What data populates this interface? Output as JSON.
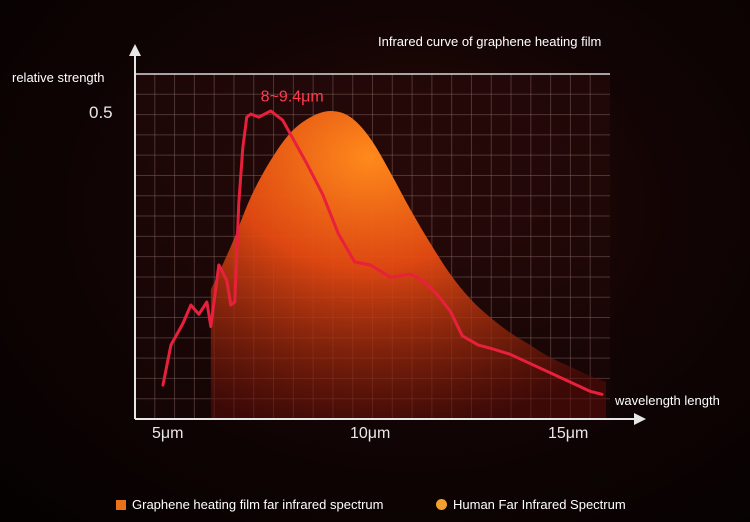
{
  "chart_data": {
    "type": "area",
    "title": "Infrared curve of graphene heating film",
    "ylabel": "relative strength",
    "xlabel": "wavelength length",
    "y_ticks": [
      "0.5"
    ],
    "x_ticks": [
      {
        "value": 5,
        "label": "5μm"
      },
      {
        "value": 10,
        "label": "10μm"
      },
      {
        "value": 15,
        "label": "15μm"
      }
    ],
    "xlim": [
      4.1,
      16.0
    ],
    "ylim": [
      0,
      0.56
    ],
    "grid": true,
    "annotation": {
      "text": "8~9.4μm",
      "x": 8.0,
      "y": 0.515
    },
    "series": [
      {
        "name": "Graphene heating film far infrared spectrum",
        "kind": "line",
        "color": "#e8203c",
        "x": [
          4.8,
          5.0,
          5.3,
          5.5,
          5.7,
          5.9,
          6.0,
          6.2,
          6.4,
          6.5,
          6.6,
          6.7,
          6.8,
          6.9,
          7.0,
          7.2,
          7.5,
          7.8,
          8.1,
          8.4,
          8.8,
          9.2,
          9.6,
          10.0,
          10.5,
          11.0,
          11.3,
          11.7,
          12.0,
          12.3,
          12.7,
          13.0,
          13.5,
          14.0,
          14.5,
          15.0,
          15.5,
          15.8
        ],
        "y": [
          0.055,
          0.12,
          0.155,
          0.185,
          0.17,
          0.19,
          0.15,
          0.25,
          0.225,
          0.185,
          0.19,
          0.35,
          0.44,
          0.49,
          0.495,
          0.49,
          0.5,
          0.485,
          0.45,
          0.415,
          0.365,
          0.3,
          0.255,
          0.25,
          0.23,
          0.235,
          0.225,
          0.2,
          0.175,
          0.135,
          0.12,
          0.115,
          0.105,
          0.09,
          0.075,
          0.06,
          0.045,
          0.04
        ]
      },
      {
        "name": "Human Far Infrared Spectrum",
        "kind": "area",
        "color": "#f28a1e",
        "x": [
          6.0,
          6.5,
          7.0,
          7.5,
          8.0,
          8.5,
          9.0,
          9.5,
          10.0,
          10.5,
          11.0,
          11.5,
          12.0,
          12.5,
          13.0,
          13.5,
          14.0,
          14.5,
          15.0,
          15.5,
          15.9
        ],
        "y": [
          0.21,
          0.28,
          0.36,
          0.42,
          0.465,
          0.49,
          0.5,
          0.49,
          0.455,
          0.4,
          0.34,
          0.285,
          0.235,
          0.195,
          0.165,
          0.14,
          0.12,
          0.1,
          0.085,
          0.07,
          0.06
        ]
      }
    ]
  },
  "legend": {
    "items": [
      "Graphene heating film far infrared spectrum",
      "Human Far Infrared Spectrum"
    ]
  }
}
